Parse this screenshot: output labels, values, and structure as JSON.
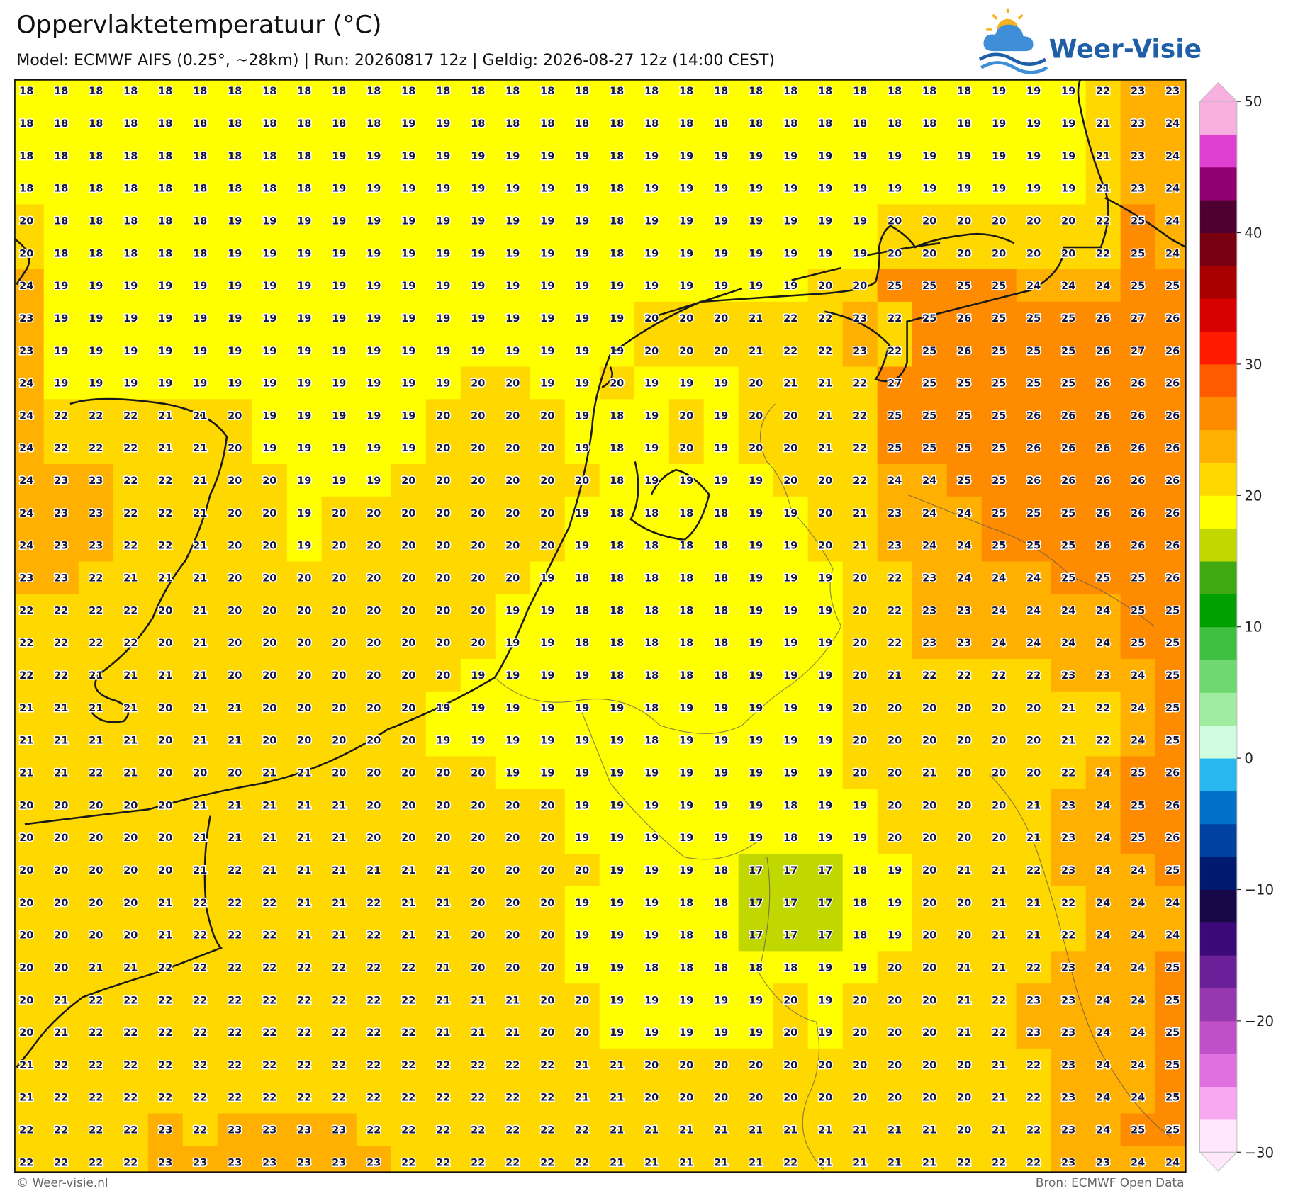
{
  "chart_data": {
    "type": "heatmap",
    "title": "Oppervlaktetemperatuur (°C)",
    "subtitle": "Model: ECMWF AIFS (0.25°, ~28km)  |  Run: 20260817 12z  |  Geldig: 2026-08-27 12z (14:00 CEST)",
    "logo": "Weer-Visie",
    "footer_left": "© Weer-visie.nl",
    "footer_right": "Bron: ECMWF Open Data",
    "values": [
      [
        18,
        18,
        18,
        18,
        18,
        18,
        18,
        18,
        18,
        18,
        18,
        18,
        18,
        18,
        18,
        18,
        18,
        18,
        18,
        18,
        18,
        18,
        18,
        18,
        18,
        18,
        18,
        18,
        19,
        19,
        19,
        22,
        23,
        23
      ],
      [
        18,
        18,
        18,
        18,
        18,
        18,
        18,
        18,
        18,
        18,
        18,
        19,
        19,
        18,
        18,
        18,
        18,
        18,
        18,
        18,
        18,
        18,
        18,
        18,
        18,
        18,
        18,
        18,
        19,
        19,
        19,
        21,
        23,
        24
      ],
      [
        18,
        18,
        18,
        18,
        18,
        18,
        18,
        18,
        18,
        19,
        19,
        19,
        19,
        19,
        19,
        19,
        19,
        18,
        19,
        19,
        19,
        19,
        19,
        19,
        19,
        19,
        19,
        19,
        19,
        19,
        19,
        21,
        23,
        24
      ],
      [
        18,
        18,
        18,
        18,
        18,
        18,
        18,
        18,
        18,
        19,
        19,
        19,
        19,
        19,
        19,
        19,
        19,
        18,
        19,
        19,
        19,
        19,
        19,
        19,
        19,
        19,
        19,
        19,
        19,
        19,
        19,
        21,
        23,
        24
      ],
      [
        20,
        18,
        18,
        18,
        18,
        18,
        19,
        19,
        19,
        19,
        19,
        19,
        19,
        19,
        19,
        19,
        19,
        18,
        19,
        19,
        19,
        19,
        19,
        19,
        19,
        20,
        20,
        20,
        20,
        20,
        20,
        22,
        25,
        24
      ],
      [
        20,
        18,
        18,
        18,
        18,
        18,
        19,
        19,
        19,
        19,
        19,
        19,
        19,
        19,
        19,
        19,
        19,
        18,
        19,
        19,
        19,
        19,
        19,
        19,
        19,
        20,
        20,
        20,
        20,
        20,
        20,
        22,
        25,
        24
      ],
      [
        24,
        19,
        19,
        19,
        19,
        19,
        19,
        19,
        19,
        19,
        19,
        19,
        19,
        19,
        19,
        19,
        19,
        19,
        19,
        19,
        19,
        19,
        19,
        20,
        20,
        25,
        25,
        25,
        25,
        24,
        24,
        24,
        25,
        25
      ],
      [
        23,
        19,
        19,
        19,
        19,
        19,
        19,
        19,
        19,
        19,
        19,
        19,
        19,
        19,
        19,
        19,
        19,
        19,
        20,
        20,
        20,
        21,
        22,
        22,
        23,
        22,
        25,
        26,
        25,
        25,
        25,
        26,
        27,
        26
      ],
      [
        23,
        19,
        19,
        19,
        19,
        19,
        19,
        19,
        19,
        19,
        19,
        19,
        19,
        19,
        19,
        19,
        19,
        19,
        20,
        20,
        20,
        21,
        22,
        22,
        23,
        22,
        25,
        26,
        25,
        25,
        25,
        26,
        27,
        26
      ],
      [
        24,
        19,
        19,
        19,
        19,
        19,
        19,
        19,
        19,
        19,
        19,
        19,
        19,
        20,
        20,
        19,
        19,
        20,
        19,
        19,
        19,
        20,
        21,
        21,
        22,
        27,
        25,
        25,
        25,
        25,
        25,
        26,
        26,
        26
      ],
      [
        24,
        22,
        22,
        22,
        21,
        21,
        20,
        19,
        19,
        19,
        19,
        19,
        20,
        20,
        20,
        20,
        19,
        18,
        19,
        20,
        19,
        20,
        20,
        21,
        22,
        25,
        25,
        25,
        25,
        26,
        26,
        26,
        26,
        26
      ],
      [
        24,
        22,
        22,
        22,
        21,
        21,
        20,
        19,
        19,
        19,
        19,
        19,
        20,
        20,
        20,
        20,
        19,
        18,
        19,
        20,
        19,
        20,
        20,
        21,
        22,
        25,
        25,
        25,
        25,
        26,
        26,
        26,
        26,
        26
      ],
      [
        24,
        23,
        23,
        22,
        22,
        21,
        20,
        20,
        19,
        19,
        19,
        20,
        20,
        20,
        20,
        20,
        20,
        18,
        19,
        19,
        19,
        19,
        20,
        20,
        22,
        24,
        24,
        25,
        25,
        26,
        26,
        26,
        26,
        26
      ],
      [
        24,
        23,
        23,
        22,
        22,
        21,
        20,
        20,
        19,
        20,
        20,
        20,
        20,
        20,
        20,
        20,
        19,
        18,
        18,
        18,
        18,
        19,
        19,
        20,
        21,
        23,
        24,
        24,
        25,
        25,
        25,
        26,
        26,
        26
      ],
      [
        24,
        23,
        23,
        22,
        22,
        21,
        20,
        20,
        19,
        20,
        20,
        20,
        20,
        20,
        20,
        20,
        19,
        18,
        18,
        18,
        18,
        19,
        19,
        20,
        21,
        23,
        24,
        24,
        25,
        25,
        25,
        26,
        26,
        26
      ],
      [
        23,
        23,
        22,
        21,
        21,
        21,
        20,
        20,
        20,
        20,
        20,
        20,
        20,
        20,
        20,
        19,
        18,
        18,
        18,
        18,
        18,
        19,
        19,
        19,
        20,
        22,
        23,
        24,
        24,
        24,
        25,
        25,
        25,
        26
      ],
      [
        22,
        22,
        22,
        22,
        20,
        21,
        20,
        20,
        20,
        20,
        20,
        20,
        20,
        20,
        19,
        19,
        18,
        18,
        18,
        18,
        18,
        19,
        19,
        19,
        20,
        22,
        23,
        23,
        24,
        24,
        24,
        24,
        25,
        25
      ],
      [
        22,
        22,
        22,
        22,
        20,
        21,
        20,
        20,
        20,
        20,
        20,
        20,
        20,
        20,
        19,
        19,
        18,
        18,
        18,
        18,
        18,
        19,
        19,
        19,
        20,
        22,
        23,
        23,
        24,
        24,
        24,
        24,
        25,
        25
      ],
      [
        22,
        22,
        21,
        21,
        21,
        21,
        20,
        20,
        20,
        20,
        20,
        20,
        20,
        19,
        19,
        19,
        19,
        18,
        18,
        18,
        18,
        19,
        19,
        19,
        20,
        21,
        22,
        22,
        22,
        22,
        23,
        23,
        24,
        25
      ],
      [
        21,
        21,
        21,
        21,
        20,
        21,
        21,
        20,
        20,
        20,
        20,
        20,
        19,
        19,
        19,
        19,
        19,
        19,
        18,
        19,
        19,
        19,
        19,
        19,
        20,
        20,
        20,
        20,
        20,
        20,
        21,
        22,
        24,
        25
      ],
      [
        21,
        21,
        21,
        21,
        20,
        21,
        21,
        20,
        20,
        20,
        20,
        20,
        19,
        19,
        19,
        19,
        19,
        19,
        18,
        19,
        19,
        19,
        19,
        19,
        20,
        20,
        20,
        20,
        20,
        20,
        21,
        22,
        24,
        25
      ],
      [
        21,
        21,
        22,
        21,
        20,
        20,
        20,
        21,
        21,
        20,
        20,
        20,
        20,
        20,
        19,
        19,
        19,
        19,
        19,
        19,
        19,
        19,
        19,
        19,
        20,
        20,
        21,
        20,
        20,
        20,
        22,
        24,
        25,
        26
      ],
      [
        20,
        20,
        20,
        20,
        20,
        21,
        21,
        21,
        21,
        21,
        20,
        20,
        20,
        20,
        20,
        20,
        19,
        19,
        19,
        19,
        19,
        19,
        18,
        19,
        19,
        20,
        20,
        20,
        20,
        21,
        23,
        24,
        25,
        26
      ],
      [
        20,
        20,
        20,
        20,
        20,
        21,
        21,
        21,
        21,
        21,
        20,
        20,
        20,
        20,
        20,
        20,
        19,
        19,
        19,
        19,
        19,
        19,
        18,
        19,
        19,
        20,
        20,
        20,
        20,
        21,
        23,
        24,
        25,
        26
      ],
      [
        20,
        20,
        20,
        20,
        20,
        21,
        22,
        21,
        21,
        21,
        21,
        21,
        21,
        20,
        20,
        20,
        20,
        19,
        19,
        19,
        18,
        17,
        17,
        17,
        18,
        19,
        20,
        21,
        21,
        22,
        23,
        24,
        24,
        25
      ],
      [
        20,
        20,
        20,
        20,
        21,
        22,
        22,
        22,
        21,
        21,
        22,
        21,
        21,
        20,
        20,
        20,
        19,
        19,
        19,
        18,
        18,
        17,
        17,
        17,
        18,
        19,
        20,
        20,
        21,
        21,
        22,
        24,
        24,
        24
      ],
      [
        20,
        20,
        20,
        20,
        21,
        22,
        22,
        22,
        21,
        21,
        22,
        21,
        21,
        20,
        20,
        20,
        19,
        19,
        19,
        18,
        18,
        17,
        17,
        17,
        18,
        19,
        20,
        20,
        21,
        21,
        22,
        24,
        24,
        24
      ],
      [
        20,
        20,
        21,
        21,
        22,
        22,
        22,
        22,
        22,
        22,
        22,
        22,
        21,
        20,
        20,
        20,
        19,
        19,
        18,
        18,
        18,
        18,
        18,
        19,
        19,
        20,
        20,
        21,
        21,
        22,
        23,
        24,
        24,
        25
      ],
      [
        20,
        21,
        22,
        22,
        22,
        22,
        22,
        22,
        22,
        22,
        22,
        22,
        21,
        21,
        21,
        20,
        20,
        19,
        19,
        19,
        19,
        19,
        20,
        19,
        20,
        20,
        20,
        21,
        22,
        23,
        23,
        24,
        24,
        25
      ],
      [
        20,
        21,
        22,
        22,
        22,
        22,
        22,
        22,
        22,
        22,
        22,
        22,
        21,
        21,
        21,
        20,
        20,
        19,
        19,
        19,
        19,
        19,
        20,
        19,
        20,
        20,
        20,
        21,
        22,
        23,
        23,
        24,
        24,
        25
      ],
      [
        21,
        22,
        22,
        22,
        22,
        22,
        22,
        22,
        22,
        22,
        22,
        22,
        22,
        22,
        22,
        22,
        21,
        21,
        20,
        20,
        20,
        20,
        20,
        20,
        20,
        20,
        20,
        20,
        21,
        22,
        23,
        24,
        24,
        25
      ],
      [
        21,
        22,
        22,
        22,
        22,
        22,
        22,
        22,
        22,
        22,
        22,
        22,
        22,
        22,
        22,
        22,
        21,
        21,
        20,
        20,
        20,
        20,
        20,
        20,
        20,
        20,
        20,
        20,
        21,
        22,
        23,
        24,
        24,
        25
      ],
      [
        22,
        22,
        22,
        22,
        23,
        22,
        23,
        23,
        23,
        23,
        22,
        22,
        22,
        22,
        22,
        22,
        22,
        21,
        21,
        21,
        21,
        21,
        21,
        21,
        21,
        21,
        21,
        20,
        21,
        22,
        23,
        24,
        25,
        25
      ],
      [
        22,
        22,
        22,
        22,
        23,
        23,
        23,
        23,
        23,
        23,
        23,
        22,
        22,
        22,
        22,
        22,
        22,
        21,
        21,
        21,
        21,
        21,
        22,
        21,
        21,
        21,
        21,
        22,
        22,
        22,
        23,
        23,
        24,
        24
      ]
    ],
    "colorbar": {
      "lim": [
        -30,
        50
      ],
      "ticks": [
        {
          "value": -30,
          "label": "−30"
        },
        {
          "value": -20,
          "label": "−20"
        },
        {
          "value": -10,
          "label": "−10"
        },
        0,
        10,
        20,
        30,
        40,
        50
      ],
      "colors": [
        "#ffe8fc",
        "#f8a8f0",
        "#e070e0",
        "#c050c8",
        "#9838b0",
        "#6a2098",
        "#3c0a78",
        "#180848",
        "#001a70",
        "#0040a0",
        "#0070c8",
        "#28b8f0",
        "#d0fce0",
        "#a0eca0",
        "#70d870",
        "#40c040",
        "#00a000",
        "#40a810",
        "#c0d800",
        "#ffff00",
        "#ffd800",
        "#ffb000",
        "#ff8c00",
        "#ff5a00",
        "#ff1a00",
        "#d80000",
        "#a80000",
        "#780010",
        "#500030",
        "#900070",
        "#e040d0",
        "#f8b0e0"
      ]
    }
  }
}
